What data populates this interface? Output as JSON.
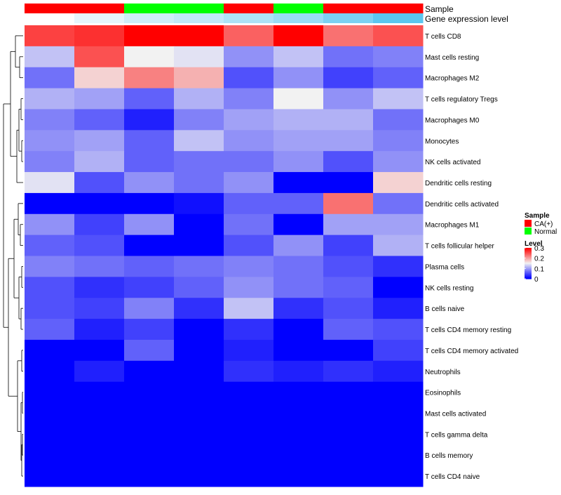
{
  "chart_data": {
    "type": "heatmap",
    "columns": 8,
    "row_labels": [
      "T cells CD8",
      "Mast cells resting",
      "Macrophages M2",
      "T cells regulatory  Tregs",
      "Macrophages M0",
      "Monocytes",
      "NK cells activated",
      "Dendritic cells resting",
      "Dendritic cells activated",
      "Macrophages M1",
      "T cells follicular helper",
      "Plasma cells",
      "NK cells resting",
      "B cells naive",
      "T cells CD4 memory resting",
      "T cells CD4 memory activated",
      "Neutrophils",
      "Eosinophils",
      "Mast cells activated",
      "T cells gamma delta",
      "B cells memory",
      "T cells CD4 naive"
    ],
    "values": [
      [
        0.26,
        0.27,
        0.3,
        0.3,
        0.24,
        0.3,
        0.23,
        0.25
      ],
      [
        0.12,
        0.25,
        0.15,
        0.14,
        0.09,
        0.12,
        0.07,
        0.08
      ],
      [
        0.07,
        0.17,
        0.22,
        0.19,
        0.05,
        0.09,
        0.04,
        0.06
      ],
      [
        0.11,
        0.1,
        0.06,
        0.11,
        0.08,
        0.15,
        0.09,
        0.12
      ],
      [
        0.08,
        0.06,
        0.02,
        0.08,
        0.1,
        0.11,
        0.11,
        0.07
      ],
      [
        0.09,
        0.1,
        0.06,
        0.12,
        0.09,
        0.1,
        0.1,
        0.08
      ],
      [
        0.08,
        0.11,
        0.06,
        0.07,
        0.07,
        0.09,
        0.05,
        0.09
      ],
      [
        0.14,
        0.05,
        0.09,
        0.07,
        0.09,
        0.0,
        0.0,
        0.17
      ],
      [
        0.0,
        0.0,
        0.0,
        0.01,
        0.06,
        0.06,
        0.23,
        0.07
      ],
      [
        0.09,
        0.04,
        0.09,
        0.0,
        0.07,
        0.0,
        0.1,
        0.1
      ],
      [
        0.06,
        0.05,
        0.0,
        0.0,
        0.05,
        0.09,
        0.04,
        0.11
      ],
      [
        0.08,
        0.07,
        0.06,
        0.07,
        0.08,
        0.07,
        0.05,
        0.03
      ],
      [
        0.05,
        0.03,
        0.04,
        0.06,
        0.09,
        0.07,
        0.06,
        0.0
      ],
      [
        0.05,
        0.04,
        0.08,
        0.03,
        0.12,
        0.03,
        0.05,
        0.02
      ],
      [
        0.06,
        0.02,
        0.04,
        0.0,
        0.03,
        0.0,
        0.06,
        0.05
      ],
      [
        0.0,
        0.0,
        0.06,
        0.0,
        0.02,
        0.0,
        0.0,
        0.04
      ],
      [
        0.0,
        0.02,
        0.0,
        0.0,
        0.03,
        0.02,
        0.03,
        0.02
      ],
      [
        0.0,
        0.0,
        0.0,
        0.0,
        0.0,
        0.0,
        0.0,
        0.0
      ],
      [
        0.0,
        0.0,
        0.0,
        0.0,
        0.0,
        0.0,
        0.0,
        0.0
      ],
      [
        0.0,
        0.0,
        0.0,
        0.0,
        0.0,
        0.0,
        0.0,
        0.0
      ],
      [
        0.0,
        0.0,
        0.0,
        0.0,
        0.0,
        0.0,
        0.0,
        0.0
      ],
      [
        0.0,
        0.0,
        0.0,
        0.0,
        0.0,
        0.0,
        0.0,
        0.0
      ]
    ],
    "annotations": {
      "sample": {
        "label": "Sample",
        "values": [
          "CA(+)",
          "CA(+)",
          "Normal",
          "Normal",
          "CA(+)",
          "Normal",
          "CA(+)",
          "CA(+)"
        ]
      },
      "gene_expression_level": {
        "label": "Gene expression level",
        "values": [
          0.0,
          0.15,
          0.3,
          0.38,
          0.5,
          0.62,
          0.8,
          1.0
        ]
      }
    },
    "color_scale": {
      "min": 0,
      "mid": 0.15,
      "max": 0.3,
      "low": "#0000ff",
      "mid_color": "#f2f2f2",
      "high": "#ff0000"
    },
    "legend": {
      "sample_title": "Sample",
      "sample_entries": [
        {
          "label": "CA(+)",
          "color": "#ff0000"
        },
        {
          "label": "Normal",
          "color": "#00ff00"
        }
      ],
      "level_title": "Level",
      "level_ticks": [
        "0.3",
        "0.2",
        "0.1",
        "0"
      ],
      "level_tick_values": [
        0.3,
        0.2,
        0.1,
        0
      ]
    },
    "gene_expression_colors": {
      "low": "#ffffff",
      "high": "#5bc6ef"
    },
    "dendrogram_side": "left"
  }
}
